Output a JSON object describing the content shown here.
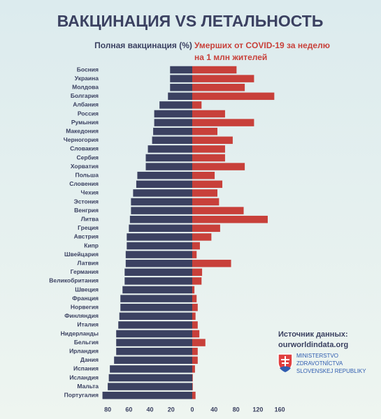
{
  "chart_data": {
    "type": "butterfly",
    "title": "ВАКЦИНАЦИЯ VS ЛЕТАЛЬНОСТЬ",
    "categories": [
      "Босния",
      "Украина",
      "Молдова",
      "Болгария",
      "Албания",
      "Россия",
      "Румыния",
      "Македония",
      "Черногория",
      "Словакия",
      "Сербия",
      "Хорватия",
      "Польша",
      "Словения",
      "Чехия",
      "Эстония",
      "Венгрия",
      "Литва",
      "Греция",
      "Австрия",
      "Кипр",
      "Швейцария",
      "Латвия",
      "Германия",
      "Великобритания",
      "Швеция",
      "Франция",
      "Норвегия",
      "Финляндия",
      "Италия",
      "Нидерланды",
      "Бельгия",
      "Ирландия",
      "Дания",
      "Испания",
      "Исландия",
      "Мальта",
      "Португалия"
    ],
    "series": [
      {
        "name": "Полная вакцинация (%)",
        "color": "#3b4161",
        "side": "left",
        "xlim": [
          0,
          90
        ],
        "xticks": [
          20,
          40,
          60,
          80
        ],
        "values": [
          21,
          21,
          21,
          23,
          31,
          36,
          36,
          37,
          38,
          42,
          44,
          44,
          52,
          53,
          56,
          58,
          58,
          59,
          60,
          62,
          62,
          63,
          63,
          64,
          64,
          66,
          68,
          68,
          69,
          70,
          72,
          72,
          72,
          74,
          78,
          79,
          80,
          85
        ]
      },
      {
        "name_lines": [
          "Умерших от COVID-19 за неделю",
          "на 1 млн жителей"
        ],
        "color": "#c8403a",
        "side": "right",
        "xlim": [
          0,
          170
        ],
        "xticks": [
          0,
          40,
          80,
          120,
          160
        ],
        "values": [
          81,
          113,
          96,
          150,
          17,
          60,
          113,
          46,
          74,
          60,
          60,
          96,
          41,
          55,
          46,
          49,
          94,
          138,
          51,
          35,
          14,
          8,
          71,
          18,
          17,
          4,
          8,
          10,
          6,
          10,
          13,
          24,
          10,
          10,
          5,
          1,
          1,
          6
        ]
      }
    ]
  },
  "source": {
    "label": "Источник данных:",
    "url": "ourworldindata.org"
  },
  "logo": {
    "lines": [
      "MINISTERSTVO",
      "ZDRAVOTNÍCTVA",
      "SLOVENSKEJ REPUBLIKY"
    ]
  }
}
